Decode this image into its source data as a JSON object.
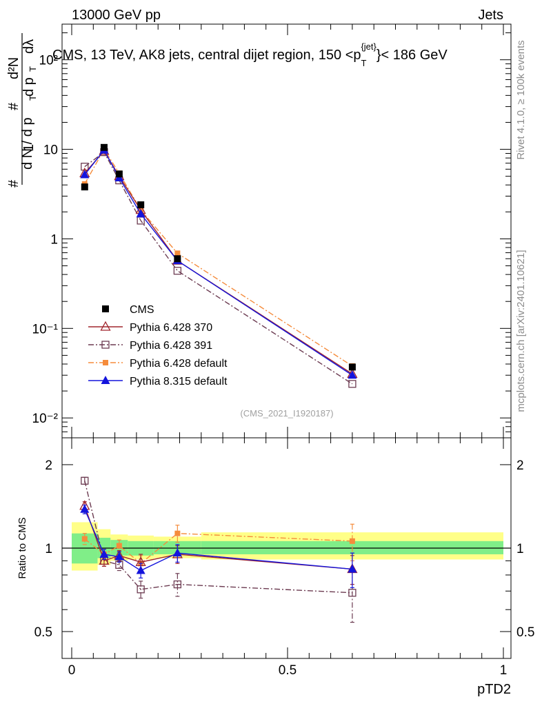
{
  "header": {
    "energy_label": "13000 GeV pp",
    "category_label": "Jets",
    "side_rivet": "Rivet 4.1.0, ≥ 100k events",
    "side_source": "mcplots.cern.ch [arXiv:2401.10621]",
    "watermark": "(CMS_2021_I1920187)"
  },
  "chart_data": [
    {
      "type": "scatter",
      "panel": "main",
      "title": "CMS, 13 TeV, AK8 jets, central dijet region, 150 <p_T^{jet}< 186 GeV",
      "title_parts": {
        "main": "CMS, 13 TeV, AK8 jets, central dijet region, 150 <p",
        "sub": "T",
        "sup": "{jet}",
        "tail": "}< 186 GeV"
      },
      "ylabel_lines": [
        "1",
        "d N / d p",
        "T",
        "#",
        "d²N",
        "d p",
        "T",
        "dλ"
      ],
      "yscale": "log",
      "ylim": [
        0.006,
        250
      ],
      "xlim": [
        -0.02,
        1.02
      ],
      "ytick_labels": [
        "10⁻²",
        "10⁻¹",
        "1",
        "10",
        "10²"
      ],
      "ytick_values": [
        0.01,
        0.1,
        1,
        10,
        100
      ],
      "x": [
        0.03,
        0.075,
        0.11,
        0.16,
        0.245,
        0.65
      ],
      "series": [
        {
          "name": "CMS",
          "color": "#000000",
          "marker": "square-filled",
          "line": "none",
          "values": [
            3.8,
            10.5,
            5.3,
            2.4,
            0.6,
            0.037
          ]
        },
        {
          "name": "Pythia 6.428 370",
          "color": "#a0252d",
          "marker": "triangle-open",
          "line": "solid",
          "values": [
            5.4,
            9.6,
            5.0,
            2.1,
            0.57,
            0.031
          ]
        },
        {
          "name": "Pythia 6.428 391",
          "color": "#6b3a50",
          "marker": "square-open",
          "line": "dashdot",
          "values": [
            6.4,
            9.3,
            4.5,
            1.6,
            0.44,
            0.024
          ]
        },
        {
          "name": "Pythia 6.428 default",
          "color": "#f58c3c",
          "marker": "square-filled-small",
          "line": "dashdot",
          "values": [
            4.1,
            10.0,
            5.4,
            2.1,
            0.69,
            0.038
          ]
        },
        {
          "name": "Pythia 8.315 default",
          "color": "#1414dc",
          "marker": "triangle-filled",
          "line": "solid",
          "values": [
            5.2,
            9.8,
            4.8,
            1.9,
            0.57,
            0.03
          ]
        }
      ]
    },
    {
      "type": "scatter",
      "panel": "ratio",
      "ylabel": "Ratio to CMS",
      "xlabel": "pTD2",
      "yscale": "log",
      "ylim": [
        0.4,
        2.5
      ],
      "xlim": [
        -0.02,
        1.02
      ],
      "ytick_labels": [
        "0.5",
        "1",
        "2"
      ],
      "ytick_values": [
        0.5,
        1,
        2
      ],
      "xtick_labels": [
        "0",
        "0.5",
        "1"
      ],
      "xtick_values": [
        0,
        0.5,
        1
      ],
      "band_bins": [
        {
          "xlo": 0.0,
          "xhi": 0.06,
          "inner": [
            0.88,
            1.13
          ],
          "outer": [
            0.83,
            1.24
          ]
        },
        {
          "xlo": 0.06,
          "xhi": 0.09,
          "inner": [
            0.92,
            1.09
          ],
          "outer": [
            0.87,
            1.17
          ]
        },
        {
          "xlo": 0.09,
          "xhi": 0.13,
          "inner": [
            0.94,
            1.07
          ],
          "outer": [
            0.9,
            1.12
          ]
        },
        {
          "xlo": 0.13,
          "xhi": 0.19,
          "inner": [
            0.94,
            1.06
          ],
          "outer": [
            0.91,
            1.11
          ]
        },
        {
          "xlo": 0.19,
          "xhi": 0.3,
          "inner": [
            0.95,
            1.06
          ],
          "outer": [
            0.92,
            1.1
          ]
        },
        {
          "xlo": 0.3,
          "xhi": 1.0,
          "inner": [
            0.95,
            1.06
          ],
          "outer": [
            0.91,
            1.14
          ]
        }
      ],
      "series": [
        {
          "name": "Pythia 6.428 370",
          "color": "#a0252d",
          "marker": "triangle-open",
          "line": "solid",
          "values": [
            1.42,
            0.9,
            0.94,
            0.89,
            0.95,
            0.84
          ],
          "errors": [
            0.05,
            0.04,
            0.04,
            0.06,
            0.07,
            0.1
          ]
        },
        {
          "name": "Pythia 6.428 391",
          "color": "#6b3a50",
          "marker": "square-open",
          "line": "dashdot",
          "values": [
            1.75,
            0.9,
            0.87,
            0.71,
            0.74,
            0.69
          ],
          "errors": [
            0.05,
            0.04,
            0.04,
            0.05,
            0.07,
            0.15
          ]
        },
        {
          "name": "Pythia 6.428 default",
          "color": "#f58c3c",
          "marker": "square-filled-small",
          "line": "dashdot",
          "values": [
            1.08,
            0.95,
            1.02,
            0.88,
            1.13,
            1.06
          ],
          "errors": [
            0.05,
            0.04,
            0.05,
            0.06,
            0.08,
            0.16
          ]
        },
        {
          "name": "Pythia 8.315 default",
          "color": "#1414dc",
          "marker": "triangle-filled",
          "line": "solid",
          "values": [
            1.38,
            0.95,
            0.93,
            0.83,
            0.96,
            0.84
          ],
          "errors": [
            0.05,
            0.04,
            0.04,
            0.05,
            0.07,
            0.12
          ]
        }
      ]
    }
  ]
}
